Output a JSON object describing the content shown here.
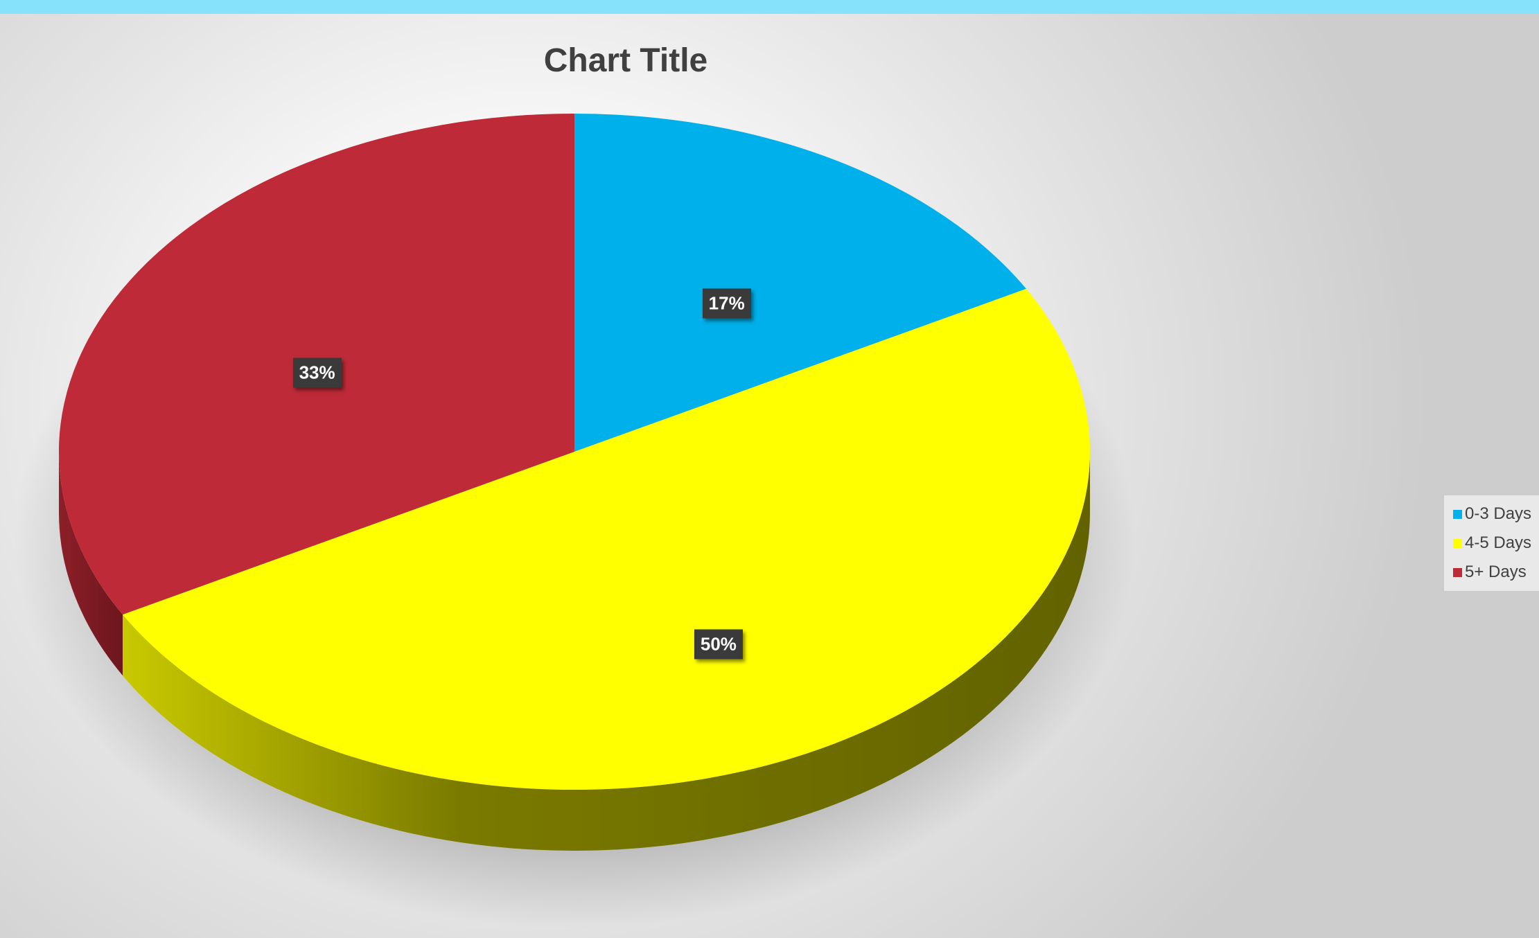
{
  "chart_data": {
    "type": "pie",
    "title": "Chart Title",
    "categories": [
      "0-3 Days",
      "4-5 Days",
      "5+ Days"
    ],
    "values": [
      17,
      50,
      33
    ],
    "data_labels": [
      "17%",
      "50%",
      "33%"
    ],
    "colors": [
      "#00b0ea",
      "#ffff00",
      "#be2a37"
    ],
    "legend_position": "right",
    "style": "3d"
  }
}
